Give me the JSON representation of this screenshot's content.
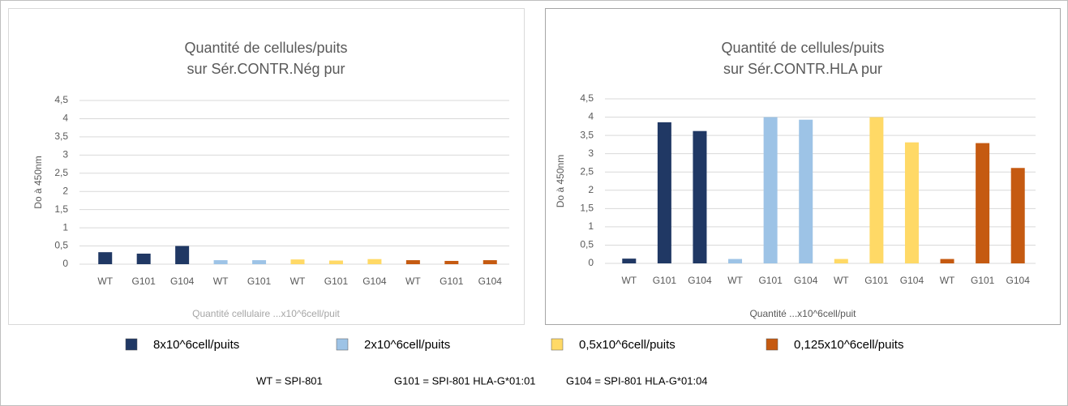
{
  "chart_data": [
    {
      "type": "bar",
      "title": [
        "Quantité de cellules/puits",
        "sur Sér.CONTR.Nég pur"
      ],
      "ylabel": "Do à 450nm",
      "xlabel": "Quantité cellulaire ...x10^6cell/puit",
      "ylim": [
        0,
        4.5
      ],
      "yticks": [
        0,
        {
          "value": 0.5,
          "label": "0,5"
        },
        1,
        {
          "value": 1.5,
          "label": "1,5"
        },
        2,
        {
          "value": 2.5,
          "label": "2,5"
        },
        3,
        {
          "value": 3.5,
          "label": "3,5"
        },
        4,
        {
          "value": 4.5,
          "label": "4,5"
        }
      ],
      "grid": true,
      "groups": [
        {
          "categories": [
            "WT",
            "G101",
            "G104"
          ],
          "values": [
            0.33,
            0.29,
            0.5
          ]
        },
        {
          "categories": [
            "WT",
            "G101"
          ],
          "values": [
            0.11,
            0.11
          ]
        },
        {
          "categories": [
            "WT",
            "G101",
            "G104"
          ],
          "values": [
            0.13,
            0.1,
            0.14
          ]
        },
        {
          "categories": [
            "WT",
            "G101",
            "G104"
          ],
          "values": [
            0.11,
            0.09,
            0.11
          ]
        }
      ]
    },
    {
      "type": "bar",
      "title": [
        "Quantité de cellules/puits",
        "sur Sér.CONTR.HLA pur"
      ],
      "ylabel": "Do à 450nm",
      "xlabel": "Quantité ...x10^6cell/puit",
      "ylim": [
        0,
        4.5
      ],
      "yticks": [
        0,
        {
          "value": 0.5,
          "label": "0,5"
        },
        1,
        {
          "value": 1.5,
          "label": "1,5"
        },
        2,
        {
          "value": 2.5,
          "label": "2,5"
        },
        3,
        {
          "value": 3.5,
          "label": "3,5"
        },
        4,
        {
          "value": 4.5,
          "label": "4,5"
        }
      ],
      "grid": true,
      "groups": [
        {
          "categories": [
            "WT",
            "G101",
            "G104"
          ],
          "values": [
            0.13,
            3.86,
            3.62
          ]
        },
        {
          "categories": [
            "WT",
            "G101",
            "G104"
          ],
          "values": [
            0.12,
            4.0,
            3.93
          ]
        },
        {
          "categories": [
            "WT",
            "G101",
            "G104"
          ],
          "values": [
            0.12,
            4.0,
            3.31
          ]
        },
        {
          "categories": [
            "WT",
            "G101",
            "G104"
          ],
          "values": [
            0.12,
            3.29,
            2.61
          ]
        }
      ]
    }
  ],
  "legend": [
    {
      "name": "8x10^6cell/puits",
      "color": "#203864"
    },
    {
      "name": "2x10^6cell/puits",
      "color": "#9dc3e6"
    },
    {
      "name": "0,5x10^6cell/puits",
      "color": "#ffd966"
    },
    {
      "name": "0,125x10^6cell/puits",
      "color": "#c55a11"
    }
  ],
  "footnote": [
    "WT = SPI-801",
    "G101 = SPI-801 HLA-G*01:01",
    "G104 = SPI-801 HLA-G*01:04"
  ]
}
